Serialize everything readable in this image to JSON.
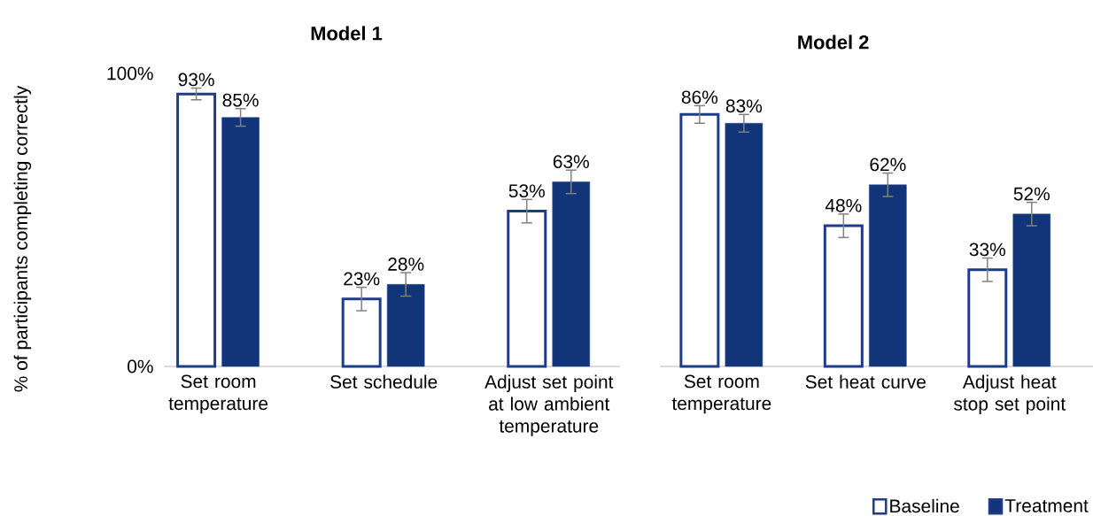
{
  "chart_data": [
    {
      "type": "bar",
      "title": "Model 1",
      "ylabel": "% of participants completing correctly",
      "categories": [
        "Set room temperature",
        "Set schedule",
        "Adjust set point at low ambient temperature"
      ],
      "ylim": [
        0,
        100
      ],
      "yticks": [
        {
          "value": 0,
          "label": "0%"
        },
        {
          "value": 100,
          "label": "100%"
        }
      ],
      "series": [
        {
          "color": "#ffffff",
          "values": [
            93,
            23,
            53
          ],
          "errors": [
            2,
            4,
            4
          ],
          "value_labels": [
            "93%",
            "23%",
            "53%"
          ]
        },
        {
          "color": "#12357a",
          "values": [
            85,
            28,
            63
          ],
          "errors": [
            3,
            4,
            4
          ],
          "value_labels": [
            "85%",
            "28%",
            "63%"
          ]
        }
      ]
    },
    {
      "type": "bar",
      "title": "Model 2",
      "categories": [
        "Set room temperature",
        "Set heat curve",
        "Adjust heat stop set point"
      ],
      "ylim": [
        0,
        100
      ],
      "tick_labels": "x",
      "legend": "bottom right",
      "series": [
        {
          "name": "Baseline",
          "color": "#ffffff",
          "values": [
            86,
            48,
            33
          ],
          "errors": [
            3,
            4,
            4
          ],
          "value_labels": [
            "86%",
            "48%",
            "33%"
          ]
        },
        {
          "name": "Treatment",
          "color": "#12357a",
          "values": [
            83,
            62,
            52
          ],
          "errors": [
            3,
            4,
            4
          ],
          "value_labels": [
            "83%",
            "62%",
            "52%"
          ]
        }
      ]
    }
  ]
}
